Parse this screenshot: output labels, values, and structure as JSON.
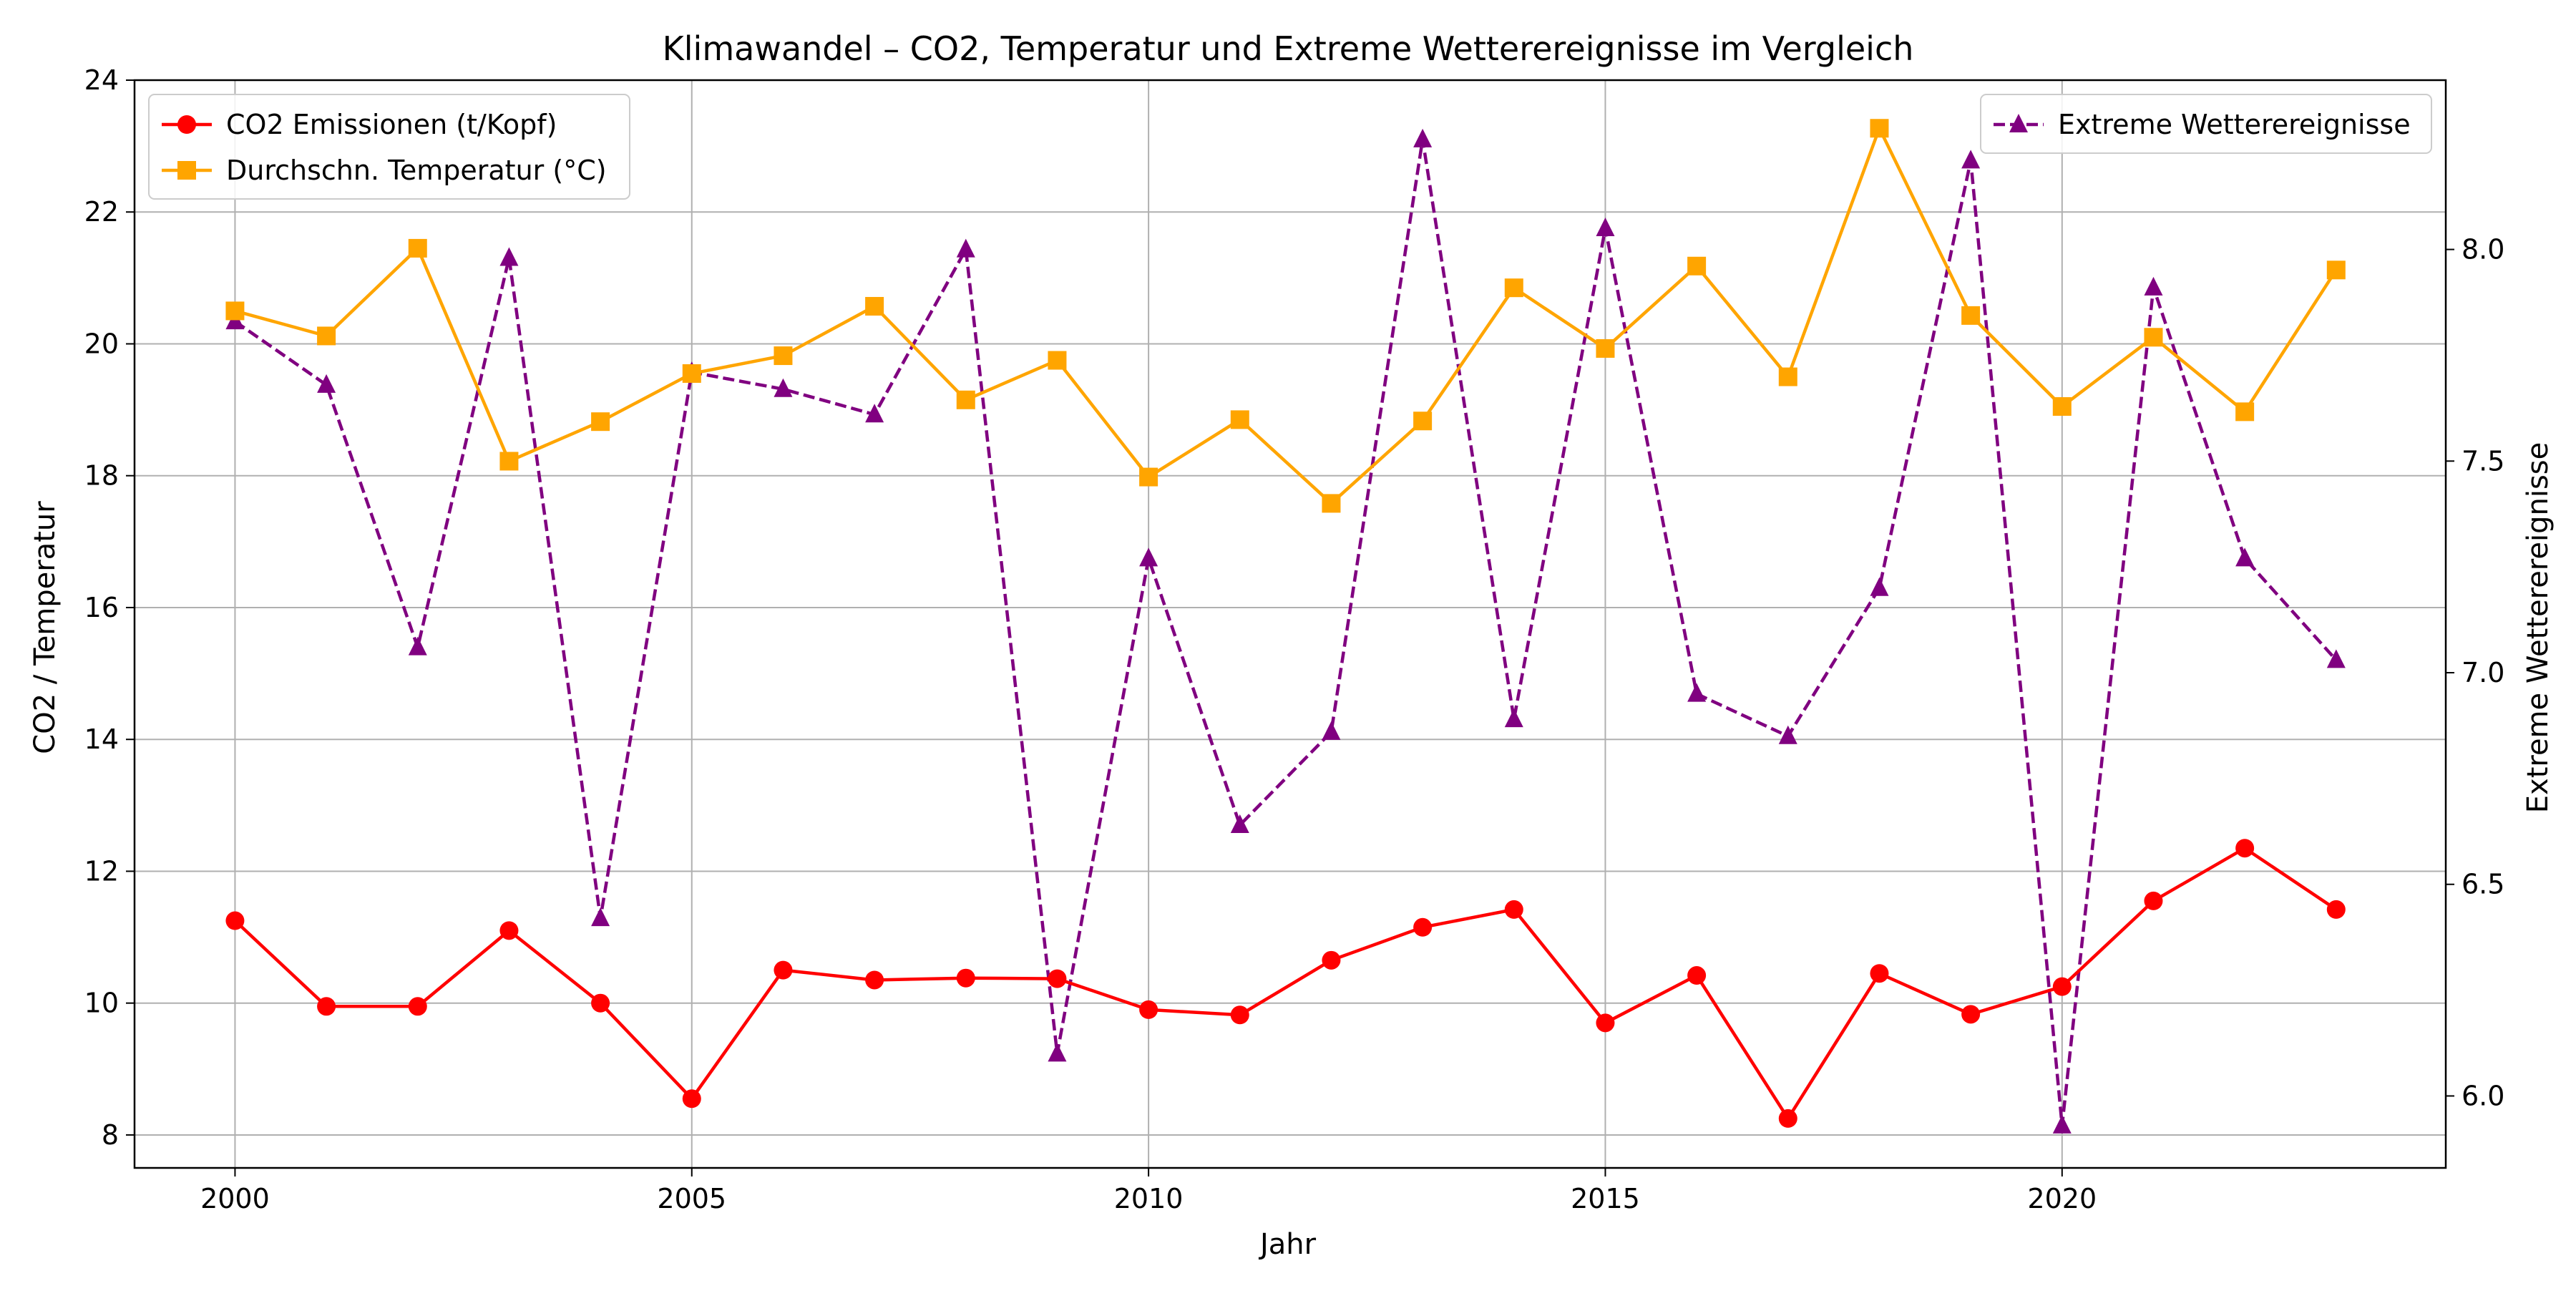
{
  "chart_data": {
    "type": "line",
    "title": "Klimawandel – CO2, Temperatur und Extreme Wetterereignisse im Vergleich",
    "xlabel": "Jahr",
    "ylabel": "CO2 / Temperatur",
    "ylabel_right": "Extreme Wetterereignisse",
    "x": [
      2000,
      2001,
      2002,
      2003,
      2004,
      2005,
      2006,
      2007,
      2008,
      2009,
      2010,
      2011,
      2012,
      2013,
      2014,
      2015,
      2016,
      2017,
      2018,
      2019,
      2020,
      2021,
      2022,
      2023
    ],
    "xlim": [
      1998.9,
      2024.2
    ],
    "xticks": [
      2000,
      2005,
      2010,
      2015,
      2020
    ],
    "ylim": [
      7.5,
      24
    ],
    "yticks": [
      8,
      10,
      12,
      14,
      16,
      18,
      20,
      22,
      24
    ],
    "ylim_right": [
      5.83,
      8.4
    ],
    "yticks_right": [
      "6.0",
      "6.5",
      "7.0",
      "7.5",
      "8.0"
    ],
    "grid": true,
    "series": [
      {
        "name": "CO2 Emissionen (t/Kopf)",
        "axis": "left",
        "color": "#ff0000",
        "marker": "circle",
        "dash": "solid",
        "values": [
          11.25,
          9.95,
          9.95,
          11.1,
          10.0,
          8.55,
          10.5,
          10.35,
          10.38,
          10.37,
          9.9,
          9.82,
          10.65,
          11.15,
          11.42,
          9.7,
          10.42,
          8.25,
          10.45,
          9.83,
          10.25,
          11.55,
          12.35,
          11.42
        ]
      },
      {
        "name": "Durchschn. Temperatur (°C)",
        "axis": "left",
        "color": "#ffa500",
        "marker": "square",
        "dash": "solid",
        "values": [
          20.5,
          20.12,
          21.45,
          18.22,
          18.82,
          19.55,
          19.82,
          20.57,
          19.15,
          19.75,
          17.98,
          18.85,
          17.58,
          18.83,
          20.85,
          19.93,
          21.18,
          19.5,
          23.27,
          20.43,
          19.05,
          20.1,
          18.97,
          21.12
        ]
      },
      {
        "name": "Extreme Wetterereignisse",
        "axis": "right",
        "color": "#800080",
        "marker": "triangle",
        "dash": "dashed",
        "values": [
          7.83,
          7.68,
          7.06,
          7.98,
          6.42,
          7.71,
          7.67,
          7.61,
          8.0,
          6.1,
          7.27,
          6.64,
          6.86,
          8.26,
          6.89,
          8.05,
          6.95,
          6.85,
          7.2,
          8.21,
          5.93,
          7.91,
          7.27,
          7.03
        ]
      }
    ],
    "legend_left_position": "upper-left",
    "legend_right_position": "upper-right"
  }
}
